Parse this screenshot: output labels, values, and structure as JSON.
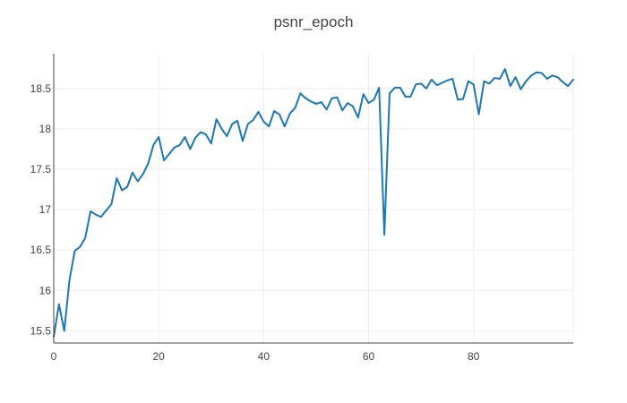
{
  "chart_data": {
    "type": "line",
    "title": "psnr_epoch",
    "xlabel": "",
    "ylabel": "",
    "xlim": [
      0,
      99
    ],
    "ylim": [
      15.35,
      18.93
    ],
    "grid": true,
    "x_ticks": [
      0,
      20,
      40,
      60,
      80
    ],
    "y_ticks": [
      15.5,
      16,
      16.5,
      17,
      17.5,
      18,
      18.5
    ],
    "x_tick_labels": [
      "0",
      "20",
      "40",
      "60",
      "80"
    ],
    "y_tick_labels": [
      "15.5",
      "16",
      "16.5",
      "17",
      "17.5",
      "18",
      "18.5"
    ],
    "series": [
      {
        "color": "#1f77b4",
        "x": [
          0,
          1,
          2,
          3,
          4,
          5,
          6,
          7,
          8,
          9,
          10,
          11,
          12,
          13,
          14,
          15,
          16,
          17,
          18,
          19,
          20,
          21,
          22,
          23,
          24,
          25,
          26,
          27,
          28,
          29,
          30,
          31,
          32,
          33,
          34,
          35,
          36,
          37,
          38,
          39,
          40,
          41,
          42,
          43,
          44,
          45,
          46,
          47,
          48,
          49,
          50,
          51,
          52,
          53,
          54,
          55,
          56,
          57,
          58,
          59,
          60,
          61,
          62,
          63,
          64,
          65,
          66,
          67,
          68,
          69,
          70,
          71,
          72,
          73,
          74,
          75,
          76,
          77,
          78,
          79,
          80,
          81,
          82,
          83,
          84,
          85,
          86,
          87,
          88,
          89,
          90,
          91,
          92,
          93,
          94,
          95,
          96,
          97,
          98,
          99
        ],
        "values": [
          15.43,
          15.83,
          15.5,
          16.13,
          16.49,
          16.54,
          16.65,
          16.98,
          16.94,
          16.91,
          16.99,
          17.07,
          17.39,
          17.24,
          17.28,
          17.46,
          17.35,
          17.44,
          17.57,
          17.8,
          17.9,
          17.61,
          17.69,
          17.77,
          17.8,
          17.9,
          17.75,
          17.89,
          17.96,
          17.93,
          17.82,
          18.12,
          18.0,
          17.91,
          18.06,
          18.1,
          17.85,
          18.06,
          18.11,
          18.21,
          18.09,
          18.03,
          18.22,
          18.18,
          18.03,
          18.19,
          18.26,
          18.44,
          18.38,
          18.34,
          18.31,
          18.33,
          18.24,
          18.38,
          18.39,
          18.23,
          18.32,
          18.28,
          18.14,
          18.43,
          18.32,
          18.36,
          18.51,
          16.69,
          18.44,
          18.51,
          18.51,
          18.4,
          18.4,
          18.55,
          18.56,
          18.5,
          18.61,
          18.54,
          18.57,
          18.6,
          18.62,
          18.36,
          18.37,
          18.59,
          18.55,
          18.18,
          18.59,
          18.56,
          18.63,
          18.62,
          18.74,
          18.53,
          18.64,
          18.49,
          18.59,
          18.66,
          18.7,
          18.69,
          18.62,
          18.66,
          18.64,
          18.58,
          18.53,
          18.61
        ]
      }
    ]
  }
}
